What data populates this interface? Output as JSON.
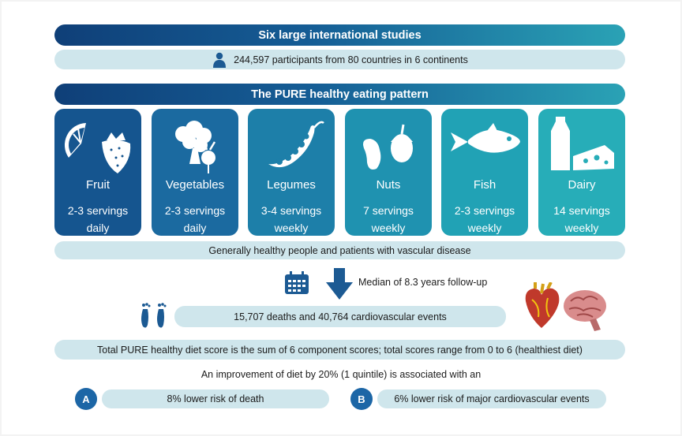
{
  "studies_banner": "Six large international studies",
  "participants_text": "244,597 participants from 80 countries in 6 continents",
  "pattern_banner": "The PURE healthy eating pattern",
  "foods": [
    {
      "name": "Fruit",
      "servings": "2-3 servings",
      "frequency": "daily",
      "icon": "fruit-icon",
      "color": "#15558f"
    },
    {
      "name": "Vegetables",
      "servings": "2-3 servings",
      "frequency": "daily",
      "icon": "vegetables-icon",
      "color": "#1b6aa0"
    },
    {
      "name": "Legumes",
      "servings": "3-4 servings",
      "frequency": "weekly",
      "icon": "legumes-icon",
      "color": "#1d7fa9"
    },
    {
      "name": "Nuts",
      "servings": "7 servings",
      "frequency": "weekly",
      "icon": "nuts-icon",
      "color": "#1f92b0"
    },
    {
      "name": "Fish",
      "servings": "2-3 servings",
      "frequency": "weekly",
      "icon": "fish-icon",
      "color": "#21a2b5"
    },
    {
      "name": "Dairy",
      "servings": "14 servings",
      "frequency": "weekly",
      "icon": "dairy-icon",
      "color": "#27adb8"
    }
  ],
  "population_text": "Generally healthy people and patients with vascular disease",
  "followup_text": "Median of 8.3 years follow-up",
  "outcomes_text": "15,707 deaths and 40,764 cardiovascular events",
  "score_text": "Total PURE healthy diet score is the sum of 6 component scores; total scores range from 0 to 6 (healthiest diet)",
  "improvement_text": "An improvement of diet by 20% (1 quintile) is associated with an",
  "result_a": {
    "letter": "A",
    "text": "8% lower risk of  death"
  },
  "result_b": {
    "letter": "B",
    "text": "6% lower risk of major cardiovascular events"
  }
}
